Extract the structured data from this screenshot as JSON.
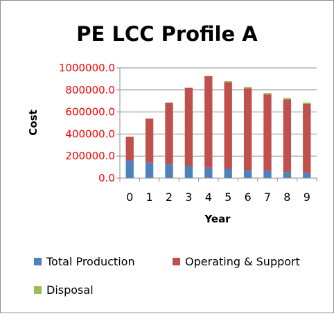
{
  "chart_data": {
    "type": "bar",
    "stacked": true,
    "title": "PE LCC Profile A",
    "xlabel": "Year",
    "ylabel": "Cost",
    "ylim": [
      0,
      1000000
    ],
    "ytick_values": [
      0,
      200000,
      400000,
      600000,
      800000,
      1000000
    ],
    "ytick_labels": [
      "0.0",
      "200000.0",
      "400000.0",
      "600000.0",
      "800000.0",
      "1000000.0"
    ],
    "categories": [
      "0",
      "1",
      "2",
      "3",
      "4",
      "5",
      "6",
      "7",
      "8",
      "9"
    ],
    "grid": true,
    "legend_position": "bottom",
    "series": [
      {
        "name": "Total Production",
        "color": "#4f81bd",
        "values": [
          160000,
          140000,
          125000,
          110000,
          95000,
          85000,
          75000,
          65000,
          55000,
          48000
        ]
      },
      {
        "name": "Operating & Support",
        "color": "#c0504d",
        "values": [
          215000,
          400000,
          560000,
          710000,
          830000,
          785000,
          740000,
          695000,
          660000,
          625000
        ]
      },
      {
        "name": "Disposal",
        "color": "#9bbb59",
        "values": [
          0,
          0,
          0,
          0,
          0,
          10000,
          12000,
          12000,
          12000,
          12000
        ]
      }
    ]
  }
}
